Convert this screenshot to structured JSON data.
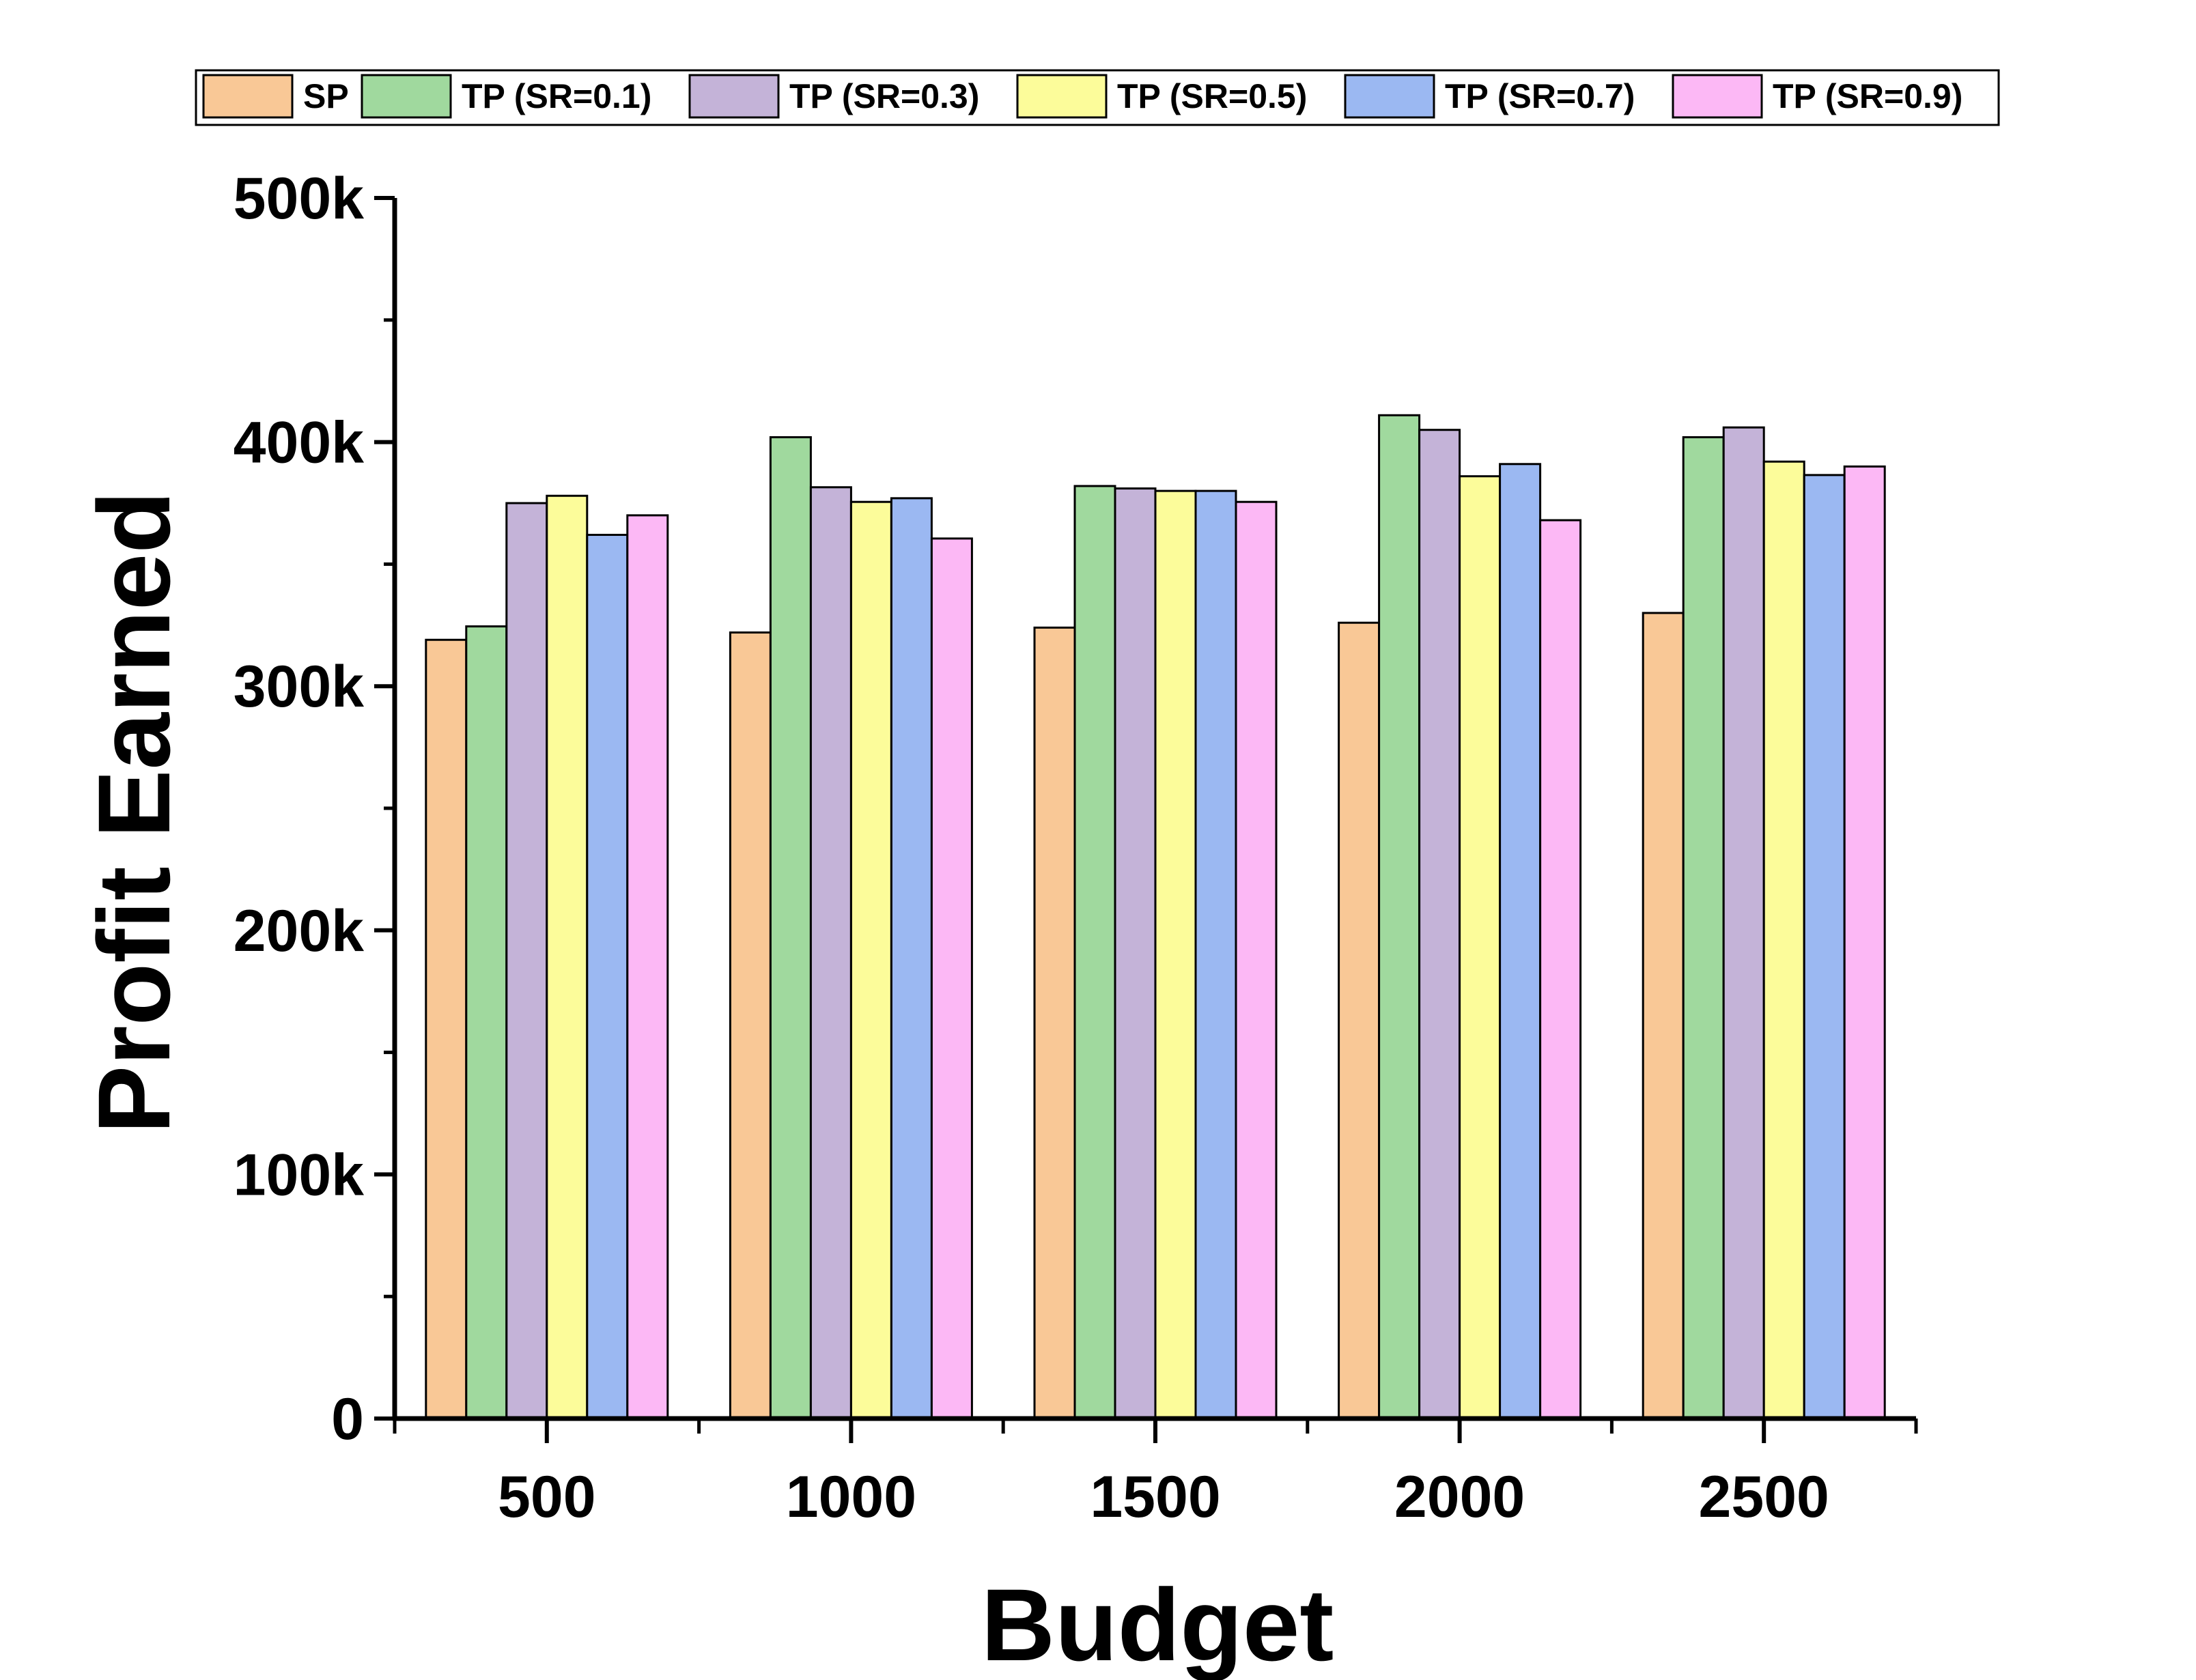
{
  "chart_data": {
    "type": "bar",
    "title": "",
    "xlabel": "Budget",
    "ylabel": "Profit Earned",
    "categories": [
      "500",
      "1000",
      "1500",
      "2000",
      "2500"
    ],
    "ylim": [
      0,
      500000
    ],
    "yticks": [
      {
        "value": 0,
        "label": "0"
      },
      {
        "value": 100000,
        "label": "100k"
      },
      {
        "value": 200000,
        "label": "200k"
      },
      {
        "value": 300000,
        "label": "300k"
      },
      {
        "value": 400000,
        "label": "400k"
      },
      {
        "value": 500000,
        "label": "500k"
      }
    ],
    "grid": false,
    "legend_position": "top",
    "series": [
      {
        "name": "SP",
        "color": "#F9C896",
        "values": [
          319000,
          322000,
          324000,
          326000,
          330000
        ]
      },
      {
        "name": "TP (SR=0.1)",
        "color": "#A0D99E",
        "values": [
          324500,
          402000,
          382000,
          411000,
          402000
        ]
      },
      {
        "name": "TP (SR=0.3)",
        "color": "#C4B3D8",
        "values": [
          375000,
          381500,
          381000,
          405000,
          406000
        ]
      },
      {
        "name": "TP (SR=0.5)",
        "color": "#FCFC9A",
        "values": [
          378000,
          375500,
          380000,
          386000,
          392000
        ]
      },
      {
        "name": "TP (SR=0.7)",
        "color": "#9BB8F2",
        "values": [
          362000,
          377000,
          380000,
          391000,
          386500
        ]
      },
      {
        "name": "TP (SR=0.9)",
        "color": "#FCB8F5",
        "values": [
          370000,
          360500,
          375500,
          368000,
          390000
        ]
      }
    ]
  }
}
